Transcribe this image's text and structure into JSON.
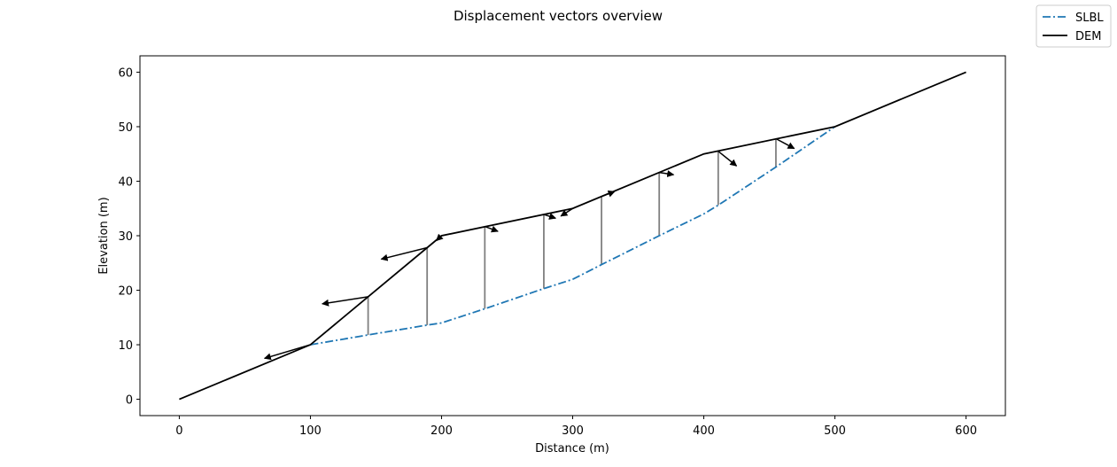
{
  "chart_data": {
    "type": "line",
    "title": "Displacement vectors overview",
    "xlabel": "Distance (m)",
    "ylabel": "Elevation (m)",
    "xlim": [
      -30,
      630
    ],
    "ylim": [
      -3,
      63
    ],
    "xticks": [
      0,
      100,
      200,
      300,
      400,
      500,
      600
    ],
    "yticks": [
      0,
      10,
      20,
      30,
      40,
      50,
      60
    ],
    "grid": false,
    "legend_position": "top-right",
    "series": [
      {
        "name": "SLBL",
        "style": "dashdot",
        "color": "#1f77b4",
        "x": [
          100,
          144,
          189,
          200,
          233,
          278,
          300,
          322,
          366,
          400,
          411,
          455,
          500
        ],
        "y": [
          10,
          11.8,
          13.6,
          14,
          16.6,
          20.3,
          22,
          24.7,
          30,
          34,
          35.6,
          42.6,
          50
        ]
      },
      {
        "name": "DEM",
        "style": "solid",
        "color": "#000000",
        "x": [
          0,
          100,
          200,
          300,
          400,
          500,
          600
        ],
        "y": [
          0,
          10,
          30,
          35,
          45,
          50,
          60
        ]
      }
    ],
    "thickness_lines": {
      "color": "#808080",
      "x": [
        144,
        189,
        233,
        278,
        322,
        366,
        411,
        455
      ],
      "y_top": [
        18.8,
        27.8,
        31.7,
        33.9,
        37.2,
        41.6,
        45.5,
        47.8
      ],
      "y_bottom": [
        11.8,
        13.6,
        16.6,
        20.3,
        24.7,
        30,
        35.6,
        42.6
      ]
    },
    "vectors": {
      "color": "#000000",
      "start_x": [
        100,
        144,
        189,
        200,
        233,
        278,
        300,
        322,
        366,
        411,
        455
      ],
      "start_y": [
        10,
        18.8,
        27.8,
        30,
        31.7,
        33.9,
        35,
        37.2,
        41.6,
        45.5,
        47.8
      ],
      "end_x": [
        65,
        109,
        154,
        196,
        243,
        287,
        291,
        332,
        377,
        425,
        469
      ],
      "end_y": [
        7.5,
        17.5,
        25.7,
        29.1,
        30.8,
        33.2,
        33.6,
        38.1,
        41.2,
        42.8,
        46
      ]
    }
  }
}
